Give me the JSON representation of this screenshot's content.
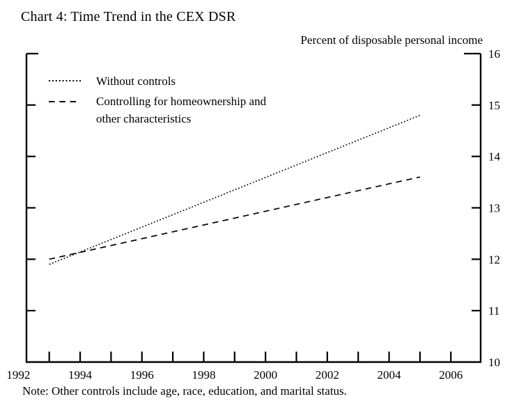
{
  "page": {
    "background": "#ffffff",
    "text_color": "#000000"
  },
  "chart_data": {
    "type": "line",
    "title": "Chart 4: Time Trend in the CEX DSR",
    "ylabel": "Percent of disposable personal income",
    "xlabel": "",
    "note": "Note: Other controls include age, race, education, and marital status.",
    "xlim": [
      1992,
      2007
    ],
    "ylim": [
      10,
      16
    ],
    "grid": false,
    "y_ticks": [
      10,
      11,
      12,
      13,
      14,
      15,
      16
    ],
    "x_minor_ticks": [
      1993,
      1994,
      1995,
      1996,
      1997,
      1998,
      1999,
      2000,
      2001,
      2002,
      2003,
      2004,
      2005,
      2006
    ],
    "x_labels": [
      "1992",
      "1994",
      "1996",
      "1998",
      "2000",
      "2002",
      "2004",
      "2006"
    ],
    "x_label_years": [
      1992,
      1994,
      1996,
      1998,
      2000,
      2002,
      2004,
      2006
    ],
    "line_color": "#000000",
    "legend": {
      "position": "top-left-inside",
      "items": [
        {
          "label": "Without controls",
          "style": "dotted",
          "lines": [
            "Without controls"
          ]
        },
        {
          "label": "Controlling for homeownership and other characteristics",
          "style": "dashed",
          "lines": [
            "Controlling for homeownership and",
            "other characteristics"
          ]
        }
      ]
    },
    "series": [
      {
        "name": "Without controls",
        "style": "dotted",
        "x": [
          1993,
          2005
        ],
        "y": [
          11.9,
          14.8
        ]
      },
      {
        "name": "Controlling for homeownership and other characteristics",
        "style": "dashed",
        "x": [
          1993,
          2005
        ],
        "y": [
          12.0,
          13.6
        ]
      }
    ]
  }
}
